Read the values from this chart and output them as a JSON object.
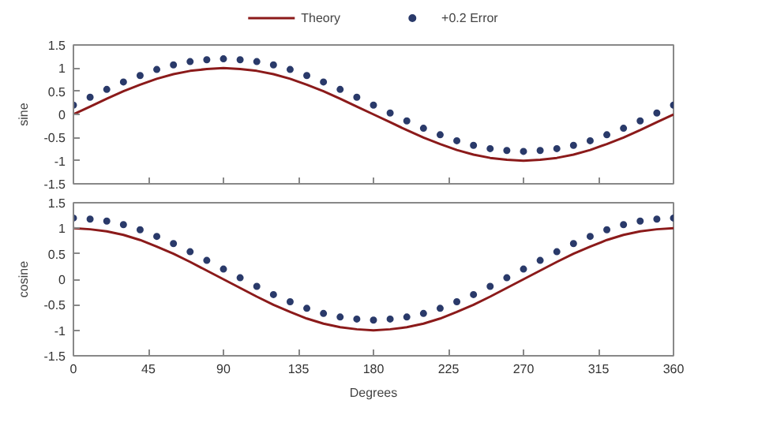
{
  "chart_data": [
    {
      "type": "line",
      "ylabel": "sine",
      "x": [
        0,
        10,
        20,
        30,
        40,
        50,
        60,
        70,
        80,
        90,
        100,
        110,
        120,
        130,
        140,
        150,
        160,
        170,
        180,
        190,
        200,
        210,
        220,
        230,
        240,
        250,
        260,
        270,
        280,
        290,
        300,
        310,
        320,
        330,
        340,
        350,
        360
      ],
      "series": [
        {
          "name": "Theory",
          "color": "#8b1a1a",
          "values": [
            0,
            0.17,
            0.34,
            0.5,
            0.64,
            0.77,
            0.87,
            0.94,
            0.98,
            1,
            0.98,
            0.94,
            0.87,
            0.77,
            0.64,
            0.5,
            0.34,
            0.17,
            0,
            -0.17,
            -0.34,
            -0.5,
            -0.64,
            -0.77,
            -0.87,
            -0.94,
            -0.98,
            -1,
            -0.98,
            -0.94,
            -0.87,
            -0.77,
            -0.64,
            -0.5,
            -0.34,
            -0.17,
            0
          ]
        },
        {
          "name": "+0.2 Error",
          "type": "scatter",
          "color": "#2a3a6a",
          "values": [
            0.2,
            0.37,
            0.54,
            0.7,
            0.84,
            0.97,
            1.07,
            1.14,
            1.18,
            1.2,
            1.18,
            1.14,
            1.07,
            0.97,
            0.84,
            0.7,
            0.54,
            0.37,
            0.2,
            0.03,
            -0.14,
            -0.3,
            -0.44,
            -0.57,
            -0.67,
            -0.74,
            -0.78,
            -0.8,
            -0.78,
            -0.74,
            -0.67,
            -0.57,
            -0.44,
            -0.3,
            -0.14,
            0.03,
            0.2
          ]
        }
      ],
      "xlim": [
        0,
        360
      ],
      "xticks": [
        0,
        45,
        90,
        135,
        180,
        225,
        270,
        315,
        360
      ],
      "ylim": [
        -1.5,
        1.5
      ],
      "yticks": [
        -1.5,
        -1,
        -0.5,
        0,
        0.5,
        1,
        1.5
      ],
      "tick_labels": "y",
      "legend": "top",
      "grid": false
    },
    {
      "type": "line",
      "ylabel": "cosine",
      "xlabel": "Degrees",
      "x": [
        0,
        10,
        20,
        30,
        40,
        50,
        60,
        70,
        80,
        90,
        100,
        110,
        120,
        130,
        140,
        150,
        160,
        170,
        180,
        190,
        200,
        210,
        220,
        230,
        240,
        250,
        260,
        270,
        280,
        290,
        300,
        310,
        320,
        330,
        340,
        350,
        360
      ],
      "series": [
        {
          "color": "#8b1a1a",
          "values": [
            1,
            0.98,
            0.94,
            0.87,
            0.77,
            0.64,
            0.5,
            0.34,
            0.17,
            0,
            -0.17,
            -0.34,
            -0.5,
            -0.64,
            -0.77,
            -0.87,
            -0.94,
            -0.98,
            -1,
            -0.98,
            -0.94,
            -0.87,
            -0.77,
            -0.64,
            -0.5,
            -0.34,
            -0.17,
            0,
            0.17,
            0.34,
            0.5,
            0.64,
            0.77,
            0.87,
            0.94,
            0.98,
            1
          ]
        },
        {
          "type": "scatter",
          "color": "#2a3a6a",
          "values": [
            1.2,
            1.18,
            1.14,
            1.07,
            0.97,
            0.84,
            0.7,
            0.54,
            0.37,
            0.2,
            0.03,
            -0.14,
            -0.3,
            -0.44,
            -0.57,
            -0.67,
            -0.74,
            -0.78,
            -0.8,
            -0.78,
            -0.74,
            -0.67,
            -0.57,
            -0.44,
            -0.3,
            -0.14,
            0.03,
            0.2,
            0.37,
            0.54,
            0.7,
            0.84,
            0.97,
            1.07,
            1.14,
            1.18,
            1.2
          ]
        }
      ],
      "xlim": [
        0,
        360
      ],
      "xticks": [
        0,
        45,
        90,
        135,
        180,
        225,
        270,
        315,
        360
      ],
      "ylim": [
        -1.5,
        1.5
      ],
      "yticks": [
        -1.5,
        -1,
        -0.5,
        0,
        0.5,
        1,
        1.5
      ],
      "grid": false
    }
  ]
}
